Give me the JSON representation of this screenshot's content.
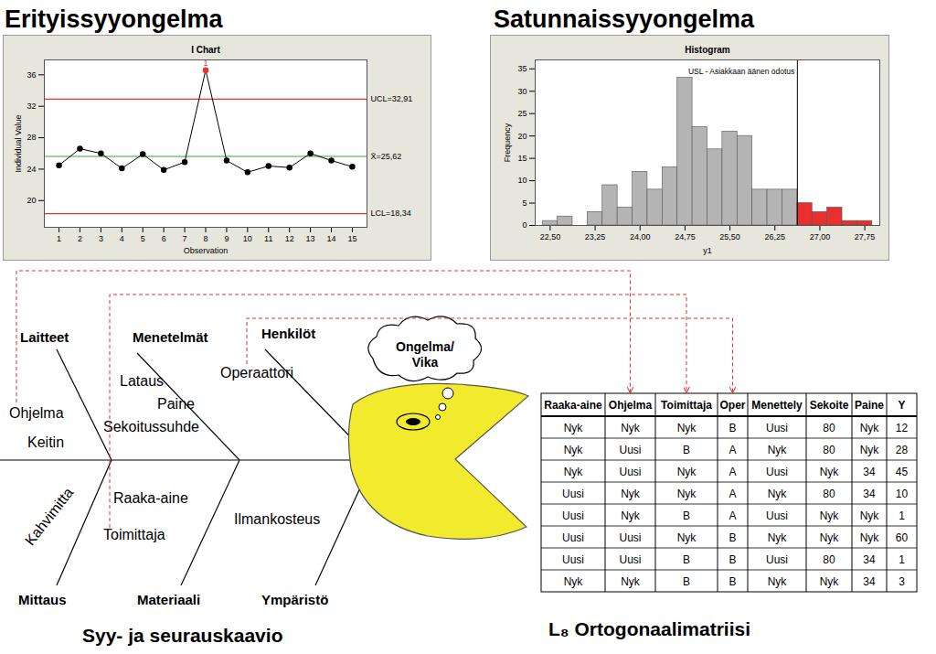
{
  "headings": [
    "Erityissyyongelma",
    "Satunnaissyyongelma"
  ],
  "chart_data": [
    {
      "type": "line",
      "title": "I Chart",
      "x_label": "Observation",
      "y_label": "Individual Value",
      "x": [
        1,
        2,
        3,
        4,
        5,
        6,
        7,
        8,
        9,
        10,
        11,
        12,
        13,
        14,
        15
      ],
      "series": [
        {
          "values": [
            24.5,
            26.6,
            26.0,
            24.1,
            25.9,
            23.9,
            24.9,
            36.6,
            25.1,
            23.6,
            24.4,
            24.2,
            26.0,
            25.1,
            24.3
          ],
          "color": "#000000",
          "marker": "circle",
          "line_style": "solid"
        }
      ],
      "colors": [
        "#000000",
        "#000000",
        "#000000",
        "#000000",
        "#000000",
        "#000000",
        "#000000",
        "#e8302e",
        "#000000",
        "#000000",
        "#000000",
        "#000000",
        "#000000",
        "#000000",
        "#000000"
      ],
      "control_limits": [
        {
          "value": 32.91,
          "label": "UCL=32,91",
          "color": "#e8302e"
        },
        {
          "value": 25.62,
          "label": "X̄=25,62",
          "color": "#3aa33a"
        },
        {
          "value": 18.34,
          "label": "LCL=18,34",
          "color": "#e8302e"
        }
      ],
      "annotations": [
        {
          "x": 8,
          "text": "1"
        }
      ],
      "xlim": [
        0.3,
        15.7
      ],
      "ylim": [
        16.6,
        37.9
      ],
      "xticks": [
        1,
        2,
        3,
        4,
        5,
        6,
        7,
        8,
        9,
        10,
        11,
        12,
        13,
        14,
        15
      ],
      "yticks": [
        20,
        24,
        28,
        32,
        36
      ],
      "grid": false
    },
    {
      "type": "histogram",
      "title": "Histogram",
      "x_label": "y1",
      "y_label": "Frequency",
      "bins": [
        22.375,
        22.625,
        22.875,
        23.125,
        23.375,
        23.625,
        23.875,
        24.125,
        24.375,
        24.625,
        24.875,
        25.125,
        25.375,
        25.625,
        25.875,
        26.125,
        26.375,
        26.625,
        26.875,
        27.125,
        27.375,
        27.625,
        27.875
      ],
      "values": [
        1,
        2,
        0,
        3,
        9,
        4,
        12,
        8,
        13,
        33,
        22,
        17,
        21,
        20,
        8,
        8,
        8,
        5,
        3,
        4,
        1,
        1
      ],
      "colors": [
        "#b4b4b4",
        "#b4b4b4",
        "#b4b4b4",
        "#b4b4b4",
        "#b4b4b4",
        "#b4b4b4",
        "#b4b4b4",
        "#b4b4b4",
        "#b4b4b4",
        "#b4b4b4",
        "#b4b4b4",
        "#b4b4b4",
        "#b4b4b4",
        "#b4b4b4",
        "#b4b4b4",
        "#b4b4b4",
        "#b4b4b4",
        "#e8302e",
        "#e8302e",
        "#e8302e",
        "#e8302e",
        "#e8302e"
      ],
      "spec_limit": {
        "value": 26.625,
        "label": "USL - Asiakkaan äänen odotus"
      },
      "xlim": [
        22.25,
        28.0
      ],
      "ylim": [
        0,
        37
      ],
      "xticks": [
        {
          "value": 22.5,
          "label": "22,50"
        },
        {
          "value": 23.25,
          "label": "23,25"
        },
        {
          "value": 24.0,
          "label": "24,00"
        },
        {
          "value": 24.75,
          "label": "24,75"
        },
        {
          "value": 25.5,
          "label": "25,50"
        },
        {
          "value": 26.25,
          "label": "26,25"
        },
        {
          "value": 27.0,
          "label": "27,00"
        },
        {
          "value": 27.75,
          "label": "27,75"
        }
      ],
      "yticks": [
        0,
        5,
        10,
        15,
        20,
        25,
        30,
        35
      ],
      "grid": false
    }
  ],
  "fishbone": {
    "title": "Syy- ja seurauskaavio",
    "effect": [
      "Ongelma/",
      "Vika"
    ],
    "categories": [
      {
        "name": "Laitteet",
        "causes": [
          "Ohjelma",
          "Keitin"
        ]
      },
      {
        "name": "Menetelmät",
        "causes": [
          "Lataus",
          "Paine",
          "Sekoitussuhde"
        ]
      },
      {
        "name": "Henkilöt",
        "causes": [
          "Operaattori"
        ]
      },
      {
        "name": "Mittaus",
        "causes": [
          "Kahvimitta"
        ]
      },
      {
        "name": "Materiaali",
        "causes": [
          "Raaka-aine",
          "Toimittaja"
        ]
      },
      {
        "name": "Ympäristö",
        "causes": [
          "Ilmankosteus"
        ]
      }
    ]
  },
  "table": {
    "title": "L₈ Ortogonaalimatriisi",
    "header": [
      "Raaka-aine",
      "Ohjelma",
      "Toimittaja",
      "Oper",
      "Menettely",
      "Sekoite",
      "Paine",
      "Y"
    ],
    "rows": [
      [
        "Nyk",
        "Nyk",
        "Nyk",
        "B",
        "Uusi",
        80,
        "Nyk",
        12
      ],
      [
        "Nyk",
        "Uusi",
        "B",
        "A",
        "Nyk",
        80,
        "Nyk",
        28
      ],
      [
        "Nyk",
        "Uusi",
        "Nyk",
        "A",
        "Uusi",
        "Nyk",
        34,
        45
      ],
      [
        "Uusi",
        "Nyk",
        "Nyk",
        "A",
        "Nyk",
        80,
        34,
        10
      ],
      [
        "Uusi",
        "Nyk",
        "B",
        "A",
        "Uusi",
        "Nyk",
        "Nyk",
        1
      ],
      [
        "Uusi",
        "Uusi",
        "Nyk",
        "B",
        "Nyk",
        "Nyk",
        "Nyk",
        60
      ],
      [
        "Uusi",
        "Uusi",
        "B",
        "B",
        "Uusi",
        80,
        34,
        1
      ],
      [
        "Nyk",
        "Nyk",
        "B",
        "B",
        "Nyk",
        "Nyk",
        34,
        3
      ]
    ]
  },
  "links": [
    {
      "from": "Ohjelma",
      "to": "Ohjelma"
    },
    {
      "from": "Toimittaja",
      "to": "Toimittaja"
    },
    {
      "from": "Operaattori",
      "to": "Oper"
    }
  ]
}
